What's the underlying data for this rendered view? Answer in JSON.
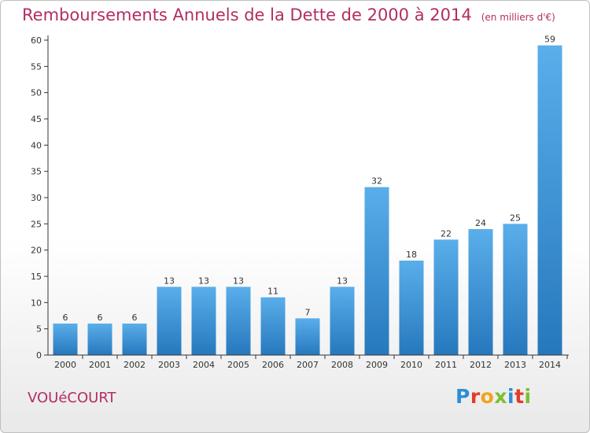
{
  "title": "Remboursements Annuels de la Dette de 2000 à 2014",
  "unit": "(en milliers d'€)",
  "commune": "VOUéCOURT",
  "brand": {
    "text": "Proxiti",
    "colors": [
      "#2b8fd6",
      "#e53b2b",
      "#f2a21a",
      "#7cbf2f",
      "#2b8fd6",
      "#e53b2b",
      "#7cbf2f"
    ]
  },
  "colors": {
    "title": "#b32d63",
    "bar_top": "#5aaeea",
    "bar_bottom": "#2678bd"
  },
  "chart_data": {
    "type": "bar",
    "title": "Remboursements Annuels de la Dette de 2000 à 2014",
    "xlabel": "",
    "ylabel": "",
    "categories": [
      "2000",
      "2001",
      "2002",
      "2003",
      "2004",
      "2005",
      "2006",
      "2007",
      "2008",
      "2009",
      "2010",
      "2011",
      "2012",
      "2013",
      "2014"
    ],
    "values": [
      6,
      6,
      6,
      13,
      13,
      13,
      11,
      7,
      13,
      32,
      18,
      22,
      24,
      25,
      59
    ],
    "ylim": [
      0,
      60
    ],
    "yticks": [
      0,
      5,
      10,
      15,
      20,
      25,
      30,
      35,
      40,
      45,
      50,
      55,
      60
    ],
    "grid": false,
    "data_labels": true
  }
}
